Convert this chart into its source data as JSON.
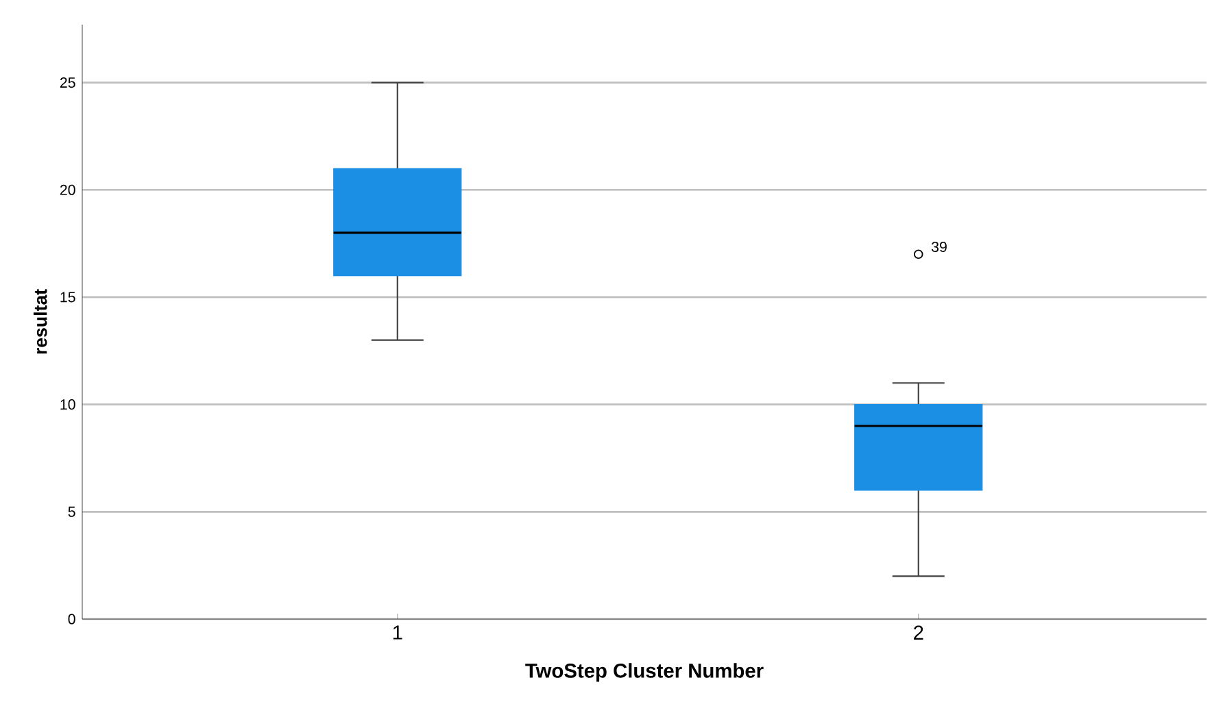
{
  "chart_data": {
    "type": "box",
    "xlabel": "TwoStep Cluster Number",
    "ylabel": "resultat",
    "categories": [
      "1",
      "2"
    ],
    "color": "#1a8fe3",
    "boxes": [
      {
        "low": 13,
        "q1": 16,
        "median": 18,
        "q3": 21,
        "high": 25
      },
      {
        "low": 2,
        "q1": 6,
        "median": 9,
        "q3": 10,
        "high": 11,
        "outliers": [
          17
        ]
      }
    ],
    "ylim": [
      0,
      27.7
    ],
    "yticks": [
      0,
      5,
      10,
      15,
      20,
      25
    ],
    "grid": "y",
    "annotations": [
      "39"
    ]
  }
}
